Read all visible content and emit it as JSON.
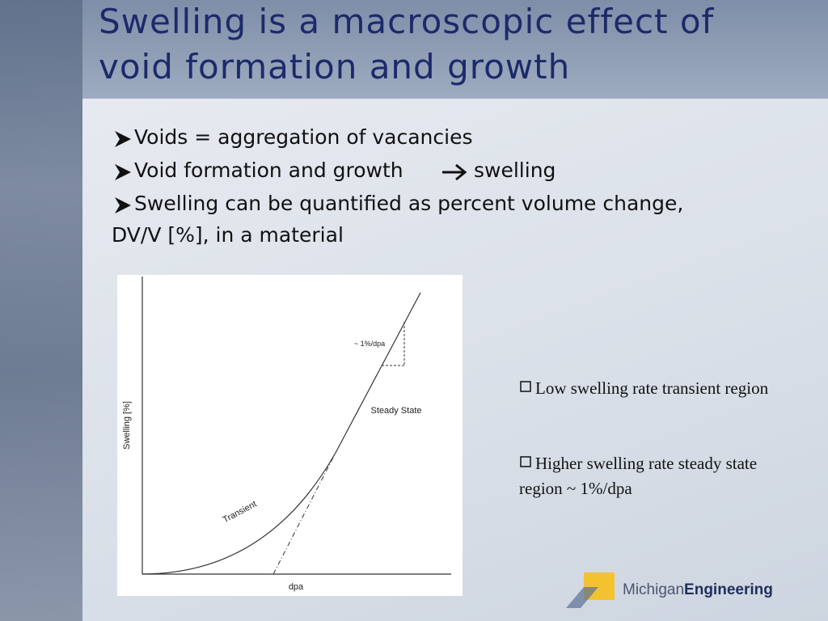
{
  "title": [
    "Swelling is a macroscopic effect of",
    "void formation and growth"
  ],
  "bullets": [
    {
      "parts": [
        "Voids = aggregation of vacancies"
      ]
    },
    {
      "parts": [
        "Void formation and growth",
        "swelling"
      ]
    },
    {
      "parts": [
        "Swelling can be quantified as percent volume change,",
        "DV/V [%], in a material"
      ]
    }
  ],
  "figure": {
    "y_label": "Swelling [%]",
    "x_label": "dpa",
    "slope_label": "~ 1%/dpa",
    "steady_label": "Steady State",
    "transient_label": "Transient"
  },
  "notes": [
    "Low swelling rate transient region",
    "Higher swelling rate steady state region ~ 1%/dpa"
  ],
  "logo": {
    "first": "Michigan",
    "second": "Engineering"
  }
}
